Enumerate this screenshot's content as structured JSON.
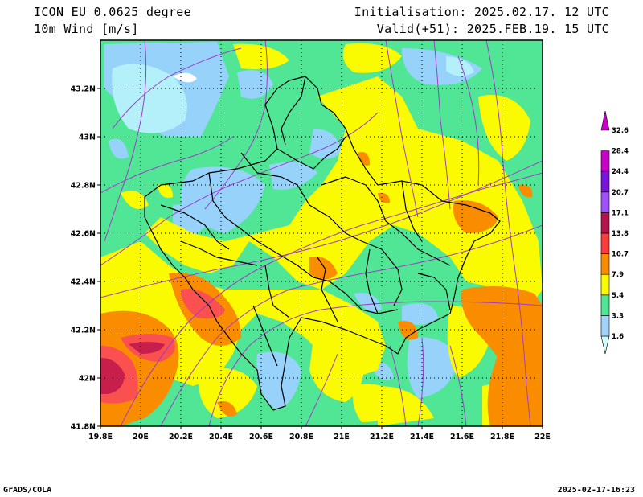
{
  "header": {
    "model": "ICON EU 0.0625 degree",
    "field": "10m Wind [m/s]",
    "init": "Initialisation: 2025.02.17. 12 UTC",
    "valid": "Valid(+51): 2025.FEB.19. 15 UTC"
  },
  "footer": {
    "software": "GrADS/COLA",
    "timestamp": "2025-02-17-16:23"
  },
  "map": {
    "lon_range": [
      19.8,
      22.0
    ],
    "lat_range": [
      41.8,
      43.4
    ],
    "x_ticks": [
      "19.8E",
      "20E",
      "20.2E",
      "20.4E",
      "20.6E",
      "20.8E",
      "21E",
      "21.2E",
      "21.4E",
      "21.6E",
      "21.8E",
      "22E"
    ],
    "y_ticks": [
      "41.8N",
      "42N",
      "42.2N",
      "42.4N",
      "42.6N",
      "42.8N",
      "43N",
      "43.2N"
    ],
    "grid": true,
    "grid_style": "dotted"
  },
  "legend": {
    "levels": [
      "1.6",
      "3.3",
      "5.4",
      "7.9",
      "10.7",
      "13.8",
      "17.1",
      "20.7",
      "24.4",
      "28.4",
      "32.6"
    ],
    "colors": [
      "#d2fafa",
      "#a0d2fa",
      "#50e696",
      "#fafa00",
      "#fa8c00",
      "#fa3c3c",
      "#b4144b",
      "#a050fa",
      "#7814dc",
      "#c800c8"
    ]
  },
  "colors": {
    "calm": "#b4f0fa",
    "light": "#96d2fa",
    "moderate": "#50e696",
    "fresh": "#fafa00",
    "strong": "#fa8c00",
    "gale": "#fa5050",
    "storm": "#c81e4b",
    "streamline": "#a03cc8",
    "border": "#000000"
  }
}
